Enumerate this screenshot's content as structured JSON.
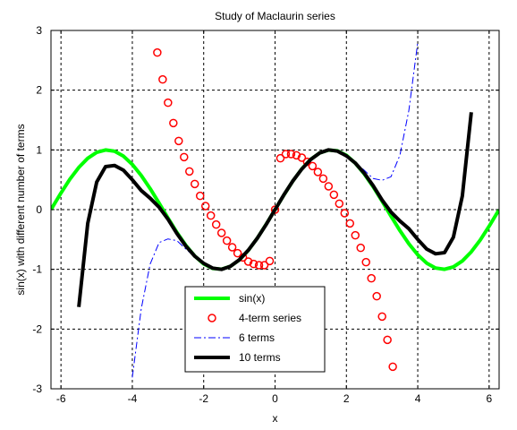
{
  "chart_data": {
    "type": "line",
    "title": "Study of Maclaurin series",
    "xlabel": "x",
    "ylabel": "sin(x) with different number of terms",
    "xlim": [
      -6.28,
      6.28
    ],
    "ylim": [
      -3,
      3
    ],
    "x_ticks": [
      -6,
      -4,
      -2,
      0,
      2,
      4,
      6
    ],
    "y_ticks": [
      -3,
      -2,
      -1,
      0,
      1,
      2,
      3
    ],
    "x_tick_labels": [
      "-6",
      "-4",
      "-2",
      "0",
      "2",
      "4",
      "6"
    ],
    "y_tick_labels": [
      "-3",
      "-2",
      "-1",
      "0",
      "1",
      "2",
      "3"
    ],
    "grid": true,
    "grid_style": "dashed",
    "legend_position": "bottom-center",
    "x": [
      -6.28,
      -6,
      -5.75,
      -5.5,
      -5.25,
      -5,
      -4.75,
      -4.5,
      -4.25,
      -4,
      -3.75,
      -3.5,
      -3.25,
      -3,
      -2.75,
      -2.5,
      -2.25,
      -2,
      -1.75,
      -1.5,
      -1.25,
      -1,
      -0.75,
      -0.5,
      -0.25,
      0,
      0.25,
      0.5,
      0.75,
      1,
      1.25,
      1.5,
      1.75,
      2,
      2.25,
      2.5,
      2.75,
      3,
      3.25,
      3.5,
      3.75,
      4,
      4.25,
      4.5,
      4.75,
      5,
      5.25,
      5.5,
      5.75,
      6,
      6.28
    ],
    "series": [
      {
        "name": "sin(x)",
        "style": "line",
        "color": "#00ff00",
        "values": [
          0,
          0.279,
          0.509,
          0.706,
          0.859,
          0.959,
          0.999,
          0.978,
          0.895,
          0.757,
          0.572,
          0.351,
          0.108,
          -0.141,
          -0.382,
          -0.598,
          -0.778,
          -0.909,
          -0.984,
          -0.997,
          -0.949,
          -0.841,
          -0.682,
          -0.479,
          -0.247,
          0,
          0.247,
          0.479,
          0.682,
          0.841,
          0.949,
          0.997,
          0.984,
          0.909,
          0.778,
          0.598,
          0.382,
          0.141,
          -0.108,
          -0.351,
          -0.572,
          -0.757,
          -0.895,
          -0.978,
          -0.999,
          -0.959,
          -0.859,
          -0.706,
          -0.509,
          -0.279,
          0
        ]
      },
      {
        "name": "4-term series",
        "style": "markers",
        "color": "#ff0000",
        "x": [
          -3.3,
          -3.15,
          -3,
          -2.85,
          -2.7,
          -2.55,
          -2.4,
          -2.25,
          -2.1,
          -1.95,
          -1.8,
          -1.65,
          -1.5,
          -1.35,
          -1.2,
          -1.05,
          -0.9,
          -0.75,
          -0.6,
          -0.45,
          -0.3,
          -0.15,
          0,
          0.15,
          0.3,
          0.45,
          0.6,
          0.75,
          0.9,
          1.05,
          1.2,
          1.35,
          1.5,
          1.65,
          1.8,
          1.95,
          2.1,
          2.25,
          2.4,
          2.55,
          2.7,
          2.85,
          3,
          3.15,
          3.3
        ],
        "values": [
          2.63,
          2.18,
          1.79,
          1.45,
          1.15,
          0.88,
          0.64,
          0.43,
          0.23,
          0.06,
          -0.1,
          -0.25,
          -0.39,
          -0.52,
          -0.63,
          -0.73,
          -0.8,
          -0.87,
          -0.91,
          -0.93,
          -0.93,
          -0.86,
          0,
          0.86,
          0.93,
          0.93,
          0.91,
          0.87,
          0.8,
          0.73,
          0.63,
          0.52,
          0.39,
          0.25,
          0.1,
          -0.06,
          -0.23,
          -0.43,
          -0.64,
          -0.88,
          -1.15,
          -1.45,
          -1.79,
          -2.18,
          -2.63
        ]
      },
      {
        "name": "6 terms",
        "style": "dashdot",
        "color": "#0000ff",
        "values": [
          null,
          null,
          null,
          null,
          null,
          null,
          null,
          null,
          null,
          -2.81,
          -1.66,
          -0.91,
          -0.55,
          -0.49,
          -0.52,
          -0.66,
          -0.79,
          -0.91,
          -0.98,
          -1.0,
          -0.95,
          -0.84,
          -0.68,
          -0.48,
          -0.25,
          0,
          0.25,
          0.48,
          0.68,
          0.84,
          0.95,
          1.0,
          0.98,
          0.91,
          0.79,
          0.66,
          0.52,
          0.49,
          0.55,
          0.91,
          1.66,
          2.81,
          null,
          null,
          null,
          null,
          null,
          null,
          null,
          null,
          null
        ]
      },
      {
        "name": "10 terms",
        "style": "line",
        "color": "#000000",
        "values": [
          null,
          null,
          null,
          -1.63,
          -0.23,
          0.46,
          0.72,
          0.74,
          0.66,
          0.5,
          0.32,
          0.19,
          0.04,
          -0.16,
          -0.4,
          -0.61,
          -0.78,
          -0.9,
          -0.98,
          -1.0,
          -0.95,
          -0.84,
          -0.68,
          -0.48,
          -0.25,
          0,
          0.25,
          0.48,
          0.68,
          0.84,
          0.95,
          1.0,
          0.98,
          0.9,
          0.78,
          0.61,
          0.4,
          0.16,
          -0.04,
          -0.19,
          -0.32,
          -0.5,
          -0.66,
          -0.74,
          -0.72,
          -0.46,
          0.23,
          1.63,
          null,
          null,
          null
        ]
      }
    ]
  }
}
